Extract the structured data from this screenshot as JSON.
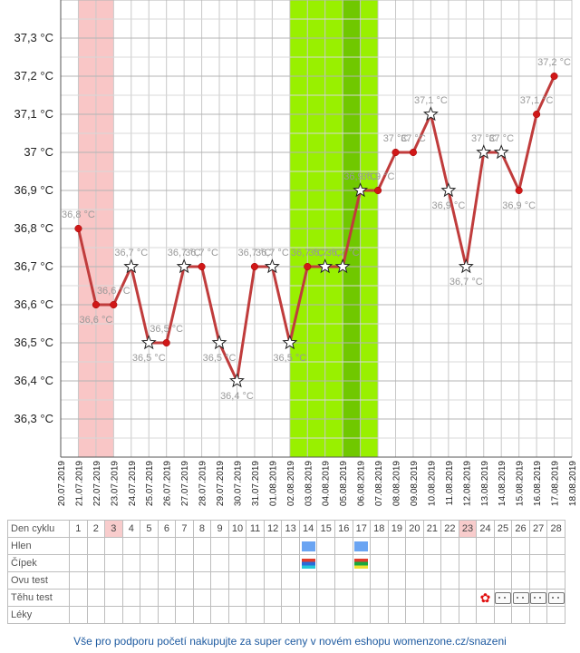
{
  "chart_data": {
    "type": "line",
    "title": "",
    "xlabel": "",
    "ylabel": "",
    "ylim": [
      36.2,
      37.4
    ],
    "y_ticks": [
      36.3,
      36.4,
      36.5,
      36.6,
      36.7,
      36.8,
      36.9,
      37.0,
      37.1,
      37.2,
      37.3
    ],
    "y_tick_labels": [
      "36,3 °C",
      "36,4 °C",
      "36,5 °C",
      "36,6 °C",
      "36,7 °C",
      "36,8 °C",
      "36,9 °C",
      "37 °C",
      "37,1 °C",
      "37,2 °C",
      "37,3 °C"
    ],
    "x_tick_labels": [
      "20.07.2019",
      "21.07.2019",
      "22.07.2019",
      "23.07.2019",
      "24.07.2019",
      "25.07.2019",
      "26.07.2019",
      "27.07.2019",
      "28.07.2019",
      "29.07.2019",
      "30.07.2019",
      "31.07.2019",
      "01.08.2019",
      "02.08.2019",
      "03.08.2019",
      "04.08.2019",
      "05.08.2019",
      "06.08.2019",
      "07.08.2019",
      "08.08.2019",
      "09.08.2019",
      "10.08.2019",
      "11.08.2019",
      "12.08.2019",
      "13.08.2019",
      "14.08.2019",
      "15.08.2019",
      "16.08.2019",
      "17.08.2019",
      "18.08.2019"
    ],
    "series": [
      {
        "values": [
          36.8,
          36.6,
          36.6,
          36.7,
          36.5,
          36.5,
          36.7,
          36.7,
          36.5,
          36.4,
          36.7,
          36.7,
          36.5,
          36.7,
          36.7,
          36.7,
          36.9,
          36.9,
          37.0,
          37.0,
          37.1,
          36.9,
          36.7,
          37.0,
          37.0,
          36.9,
          37.1,
          37.2
        ],
        "labels": [
          "36,8 °C",
          "36,6 °C",
          "36,6 °C",
          "36,7 °C",
          "36,5 °C",
          "36,5 °C",
          "36,7 °C",
          "36,7 °C",
          "36,5 °C",
          "36,4 °C",
          "36,7 °C",
          "36,7 °C",
          "36,5 °C",
          "36,7 °C",
          "36,7 °C",
          "36,7 °C",
          "36,9 °C",
          "36,9 °C",
          "37 °C",
          "37 °C",
          "37,1 °C",
          "36,9 °C",
          "36,7 °C",
          "37 °C",
          "37 °C",
          "36,9 °C",
          "37,1 °C",
          "37,2 °C"
        ],
        "markers": [
          "dot",
          "dot",
          "dot",
          "star",
          "star",
          "dot",
          "star",
          "dot",
          "star",
          "star",
          "dot",
          "star",
          "star",
          "dot",
          "star",
          "star",
          "star",
          "dot",
          "dot",
          "dot",
          "star",
          "star",
          "star",
          "star",
          "star",
          "dot",
          "dot",
          "dot"
        ]
      }
    ],
    "highlight_bands": [
      {
        "from": "21.07.2019",
        "to": "23.07.2019",
        "color": "#f9c6c6"
      },
      {
        "from": "02.08.2019",
        "to": "07.08.2019",
        "color": "#99f000"
      },
      {
        "from": "05.08.2019",
        "to": "06.08.2019",
        "color": "#70c800"
      }
    ],
    "grid": true,
    "line_color": "#c03c3c",
    "dot_color": "#d01818"
  },
  "table": {
    "rows": [
      {
        "label": "Den cyklu",
        "cells": [
          "1",
          "2",
          "3",
          "4",
          "5",
          "6",
          "7",
          "8",
          "9",
          "10",
          "11",
          "12",
          "13",
          "14",
          "15",
          "16",
          "17",
          "18",
          "19",
          "20",
          "21",
          "22",
          "23",
          "24",
          "25",
          "26",
          "27",
          "28"
        ],
        "highlight": [
          2,
          22
        ]
      },
      {
        "label": "Hlen",
        "marks": {
          "13": "blue",
          "16": "blue"
        }
      },
      {
        "label": "Čípek",
        "marks": {
          "13": "cipek",
          "16": "cipek2"
        }
      },
      {
        "label": "Ovu test",
        "marks": {}
      },
      {
        "label": "Těhu test",
        "marks": {
          "23": "flower",
          "24": "neg",
          "25": "neg",
          "26": "neg",
          "27": "neg"
        }
      },
      {
        "label": "Léky",
        "marks": {}
      }
    ]
  },
  "footer": {
    "text": "Vše pro podporu početí nakupujte za super ceny v novém eshopu womenzone.cz/snazeni"
  }
}
